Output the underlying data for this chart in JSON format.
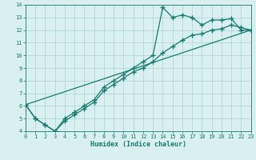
{
  "line1_x": [
    0,
    1,
    2,
    3,
    4,
    5,
    6,
    7,
    8,
    9,
    10,
    11,
    12,
    13,
    14,
    15,
    16,
    17,
    18,
    19,
    20,
    21,
    22,
    23
  ],
  "line1_y": [
    6.1,
    5.0,
    4.5,
    4.0,
    5.0,
    5.5,
    6.0,
    6.5,
    7.5,
    8.0,
    8.5,
    9.0,
    9.5,
    10.0,
    13.8,
    13.0,
    13.2,
    13.0,
    12.4,
    12.8,
    12.8,
    12.9,
    12.0,
    12.0
  ],
  "line2_x": [
    0,
    23
  ],
  "line2_y": [
    6.1,
    12.0
  ],
  "line3_x": [
    0,
    1,
    2,
    3,
    4,
    5,
    6,
    7,
    8,
    9,
    10,
    11,
    12,
    13,
    14,
    15,
    16,
    17,
    18,
    19,
    20,
    21,
    22,
    23
  ],
  "line3_y": [
    6.1,
    5.0,
    4.5,
    4.0,
    4.8,
    5.3,
    5.8,
    6.3,
    7.2,
    7.7,
    8.2,
    8.7,
    9.0,
    9.5,
    10.2,
    10.7,
    11.2,
    11.6,
    11.7,
    12.0,
    12.1,
    12.4,
    12.2,
    12.0
  ],
  "line_color": "#1a7a6e",
  "bg_color": "#d8f0f0",
  "grid_color": "#aad4d0",
  "xlabel": "Humidex (Indice chaleur)",
  "xlim": [
    0,
    23
  ],
  "ylim": [
    4,
    14
  ],
  "xticks": [
    0,
    1,
    2,
    3,
    4,
    5,
    6,
    7,
    8,
    9,
    10,
    11,
    12,
    13,
    14,
    15,
    16,
    17,
    18,
    19,
    20,
    21,
    22,
    23
  ],
  "yticks": [
    4,
    5,
    6,
    7,
    8,
    9,
    10,
    11,
    12,
    13,
    14
  ],
  "marker": "+",
  "markersize": 4,
  "linewidth": 0.9
}
